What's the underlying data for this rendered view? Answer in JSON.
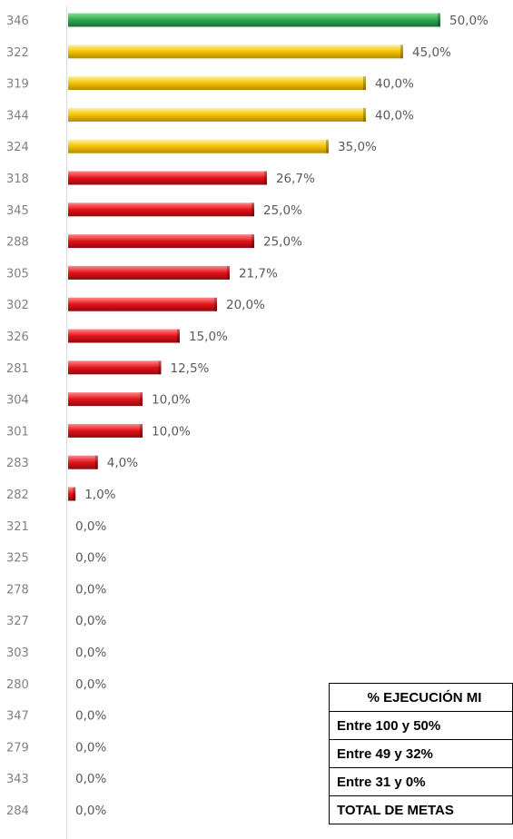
{
  "chart_data": {
    "type": "bar",
    "orientation": "horizontal",
    "categories": [
      "346",
      "322",
      "319",
      "344",
      "324",
      "318",
      "345",
      "288",
      "305",
      "302",
      "326",
      "281",
      "304",
      "301",
      "283",
      "282",
      "321",
      "325",
      "278",
      "327",
      "303",
      "280",
      "347",
      "279",
      "343",
      "284"
    ],
    "values": [
      50.0,
      45.0,
      40.0,
      40.0,
      35.0,
      26.7,
      25.0,
      25.0,
      21.7,
      20.0,
      15.0,
      12.5,
      10.0,
      10.0,
      4.0,
      1.0,
      0.0,
      0.0,
      0.0,
      0.0,
      0.0,
      0.0,
      0.0,
      0.0,
      0.0,
      0.0
    ],
    "value_labels": [
      "50,0%",
      "45,0%",
      "40,0%",
      "40,0%",
      "35,0%",
      "26,7%",
      "25,0%",
      "25,0%",
      "21,7%",
      "20,0%",
      "15,0%",
      "12,5%",
      "10,0%",
      "10,0%",
      "4,0%",
      "1,0%",
      "0,0%",
      "0,0%",
      "0,0%",
      "0,0%",
      "0,0%",
      "0,0%",
      "0,0%",
      "0,0%",
      "0,0%",
      "0,0%"
    ],
    "xlim": [
      0,
      100
    ],
    "grid": false,
    "colors": {
      "green": "#2ea44f",
      "yellow": "#f2c200",
      "red": "#e3121a"
    }
  },
  "legend_table": {
    "header": "% EJECUCIÓN MI",
    "rows": [
      "Entre 100 y 50%",
      "Entre 49 y 32%",
      "Entre 31 y 0%",
      "TOTAL DE METAS"
    ]
  }
}
